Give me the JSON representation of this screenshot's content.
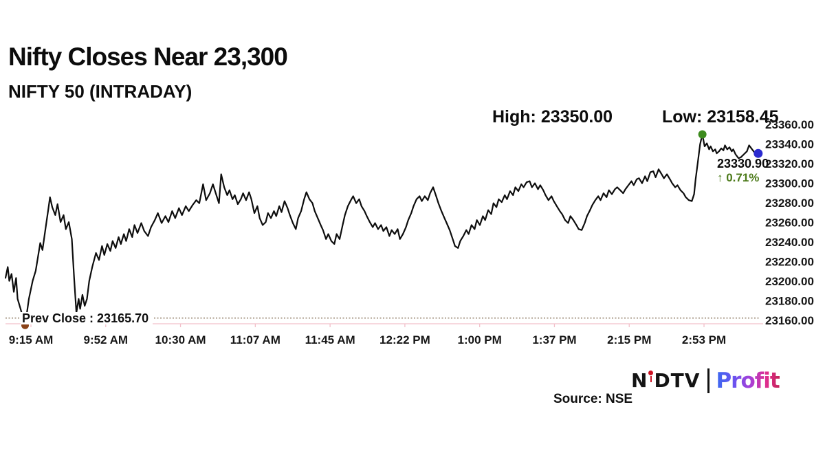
{
  "header": {
    "title": "Nifty Closes Near 23,300",
    "subtitle": "NIFTY 50 (INTRADAY)",
    "high_label": "High: 23350.00",
    "low_label": "Low: 23158.45"
  },
  "footer": {
    "source": "Source: NSE",
    "logo": {
      "n": "N",
      "dtv": "DTV",
      "profit": "Profit"
    }
  },
  "chart_data": {
    "type": "line",
    "title": "Nifty Closes Near 23,300",
    "subtitle": "NIFTY 50 (INTRADAY)",
    "instrument": "NIFTY 50",
    "high": 23350.0,
    "low": 23158.45,
    "prev_close": 23165.7,
    "last": 23330.9,
    "change_pct": 0.71,
    "prev_close_label": "Prev Close : 23165.70",
    "last_price_label": "23330.90",
    "change_label": "↑ 0.71%",
    "ylim": [
      23160,
      23360
    ],
    "grid": false,
    "line_color": "#0d0d0d",
    "axis_color": "#f2c0ca",
    "prev_close_line_color": "#86715a",
    "change_color": "#4c7a1a",
    "y_ticks": [
      "23360.00",
      "23340.00",
      "23320.00",
      "23300.00",
      "23280.00",
      "23260.00",
      "23240.00",
      "23220.00",
      "23200.00",
      "23180.00",
      "23160.00"
    ],
    "x_ticks": [
      "9:15 AM",
      "9:52 AM",
      "10:30 AM",
      "11:07 AM",
      "11:45 AM",
      "12:22 PM",
      "1:00 PM",
      "1:37 PM",
      "2:15 PM",
      "2:53 PM"
    ],
    "markers": [
      {
        "name": "low-marker",
        "x": 0.026,
        "price": 23158.45,
        "color": "#8a4218",
        "r": 5.5
      },
      {
        "name": "high-marker",
        "x": 0.924,
        "price": 23350.0,
        "color": "#3d8b1e",
        "r": 6
      },
      {
        "name": "last-marker",
        "x": 0.998,
        "price": 23330.9,
        "color": "#2b2bd0",
        "r": 6.5
      }
    ],
    "series": [
      {
        "name": "NIFTY 50",
        "points": [
          [
            0.0,
            23206
          ],
          [
            0.003,
            23217
          ],
          [
            0.005,
            23203
          ],
          [
            0.008,
            23210
          ],
          [
            0.011,
            23192
          ],
          [
            0.014,
            23206
          ],
          [
            0.016,
            23185
          ],
          [
            0.02,
            23175
          ],
          [
            0.024,
            23164
          ],
          [
            0.026,
            23158
          ],
          [
            0.031,
            23185
          ],
          [
            0.036,
            23203
          ],
          [
            0.04,
            23213
          ],
          [
            0.043,
            23227
          ],
          [
            0.046,
            23241
          ],
          [
            0.049,
            23234
          ],
          [
            0.053,
            23255
          ],
          [
            0.057,
            23276
          ],
          [
            0.059,
            23287
          ],
          [
            0.062,
            23277
          ],
          [
            0.066,
            23269
          ],
          [
            0.069,
            23280
          ],
          [
            0.073,
            23262
          ],
          [
            0.077,
            23269
          ],
          [
            0.08,
            23255
          ],
          [
            0.084,
            23262
          ],
          [
            0.088,
            23245
          ],
          [
            0.091,
            23206
          ],
          [
            0.094,
            23171
          ],
          [
            0.097,
            23185
          ],
          [
            0.099,
            23175
          ],
          [
            0.102,
            23189
          ],
          [
            0.105,
            23178
          ],
          [
            0.108,
            23185
          ],
          [
            0.111,
            23203
          ],
          [
            0.115,
            23217
          ],
          [
            0.12,
            23231
          ],
          [
            0.124,
            23224
          ],
          [
            0.128,
            23238
          ],
          [
            0.131,
            23229
          ],
          [
            0.135,
            23240
          ],
          [
            0.139,
            23233
          ],
          [
            0.142,
            23243
          ],
          [
            0.146,
            23236
          ],
          [
            0.15,
            23247
          ],
          [
            0.153,
            23240
          ],
          [
            0.157,
            23250
          ],
          [
            0.16,
            23243
          ],
          [
            0.164,
            23255
          ],
          [
            0.168,
            23247
          ],
          [
            0.171,
            23259
          ],
          [
            0.175,
            23251
          ],
          [
            0.18,
            23261
          ],
          [
            0.184,
            23253
          ],
          [
            0.189,
            23248
          ],
          [
            0.193,
            23257
          ],
          [
            0.198,
            23264
          ],
          [
            0.202,
            23271
          ],
          [
            0.207,
            23261
          ],
          [
            0.212,
            23268
          ],
          [
            0.216,
            23262
          ],
          [
            0.221,
            23273
          ],
          [
            0.225,
            23266
          ],
          [
            0.23,
            23276
          ],
          [
            0.234,
            23269
          ],
          [
            0.239,
            23278
          ],
          [
            0.243,
            23273
          ],
          [
            0.248,
            23279
          ],
          [
            0.253,
            23284
          ],
          [
            0.257,
            23281
          ],
          [
            0.262,
            23300
          ],
          [
            0.266,
            23284
          ],
          [
            0.271,
            23291
          ],
          [
            0.275,
            23300
          ],
          [
            0.28,
            23288
          ],
          [
            0.283,
            23281
          ],
          [
            0.286,
            23310
          ],
          [
            0.29,
            23297
          ],
          [
            0.294,
            23289
          ],
          [
            0.297,
            23294
          ],
          [
            0.301,
            23285
          ],
          [
            0.304,
            23289
          ],
          [
            0.308,
            23280
          ],
          [
            0.312,
            23285
          ],
          [
            0.315,
            23291
          ],
          [
            0.319,
            23284
          ],
          [
            0.323,
            23292
          ],
          [
            0.326,
            23285
          ],
          [
            0.33,
            23271
          ],
          [
            0.334,
            23278
          ],
          [
            0.337,
            23266
          ],
          [
            0.341,
            23259
          ],
          [
            0.345,
            23262
          ],
          [
            0.348,
            23271
          ],
          [
            0.352,
            23266
          ],
          [
            0.356,
            23273
          ],
          [
            0.359,
            23268
          ],
          [
            0.363,
            23278
          ],
          [
            0.366,
            23272
          ],
          [
            0.37,
            23283
          ],
          [
            0.374,
            23276
          ],
          [
            0.377,
            23269
          ],
          [
            0.381,
            23261
          ],
          [
            0.385,
            23255
          ],
          [
            0.388,
            23266
          ],
          [
            0.392,
            23273
          ],
          [
            0.396,
            23285
          ],
          [
            0.399,
            23292
          ],
          [
            0.403,
            23285
          ],
          [
            0.407,
            23281
          ],
          [
            0.41,
            23273
          ],
          [
            0.414,
            23266
          ],
          [
            0.418,
            23259
          ],
          [
            0.421,
            23254
          ],
          [
            0.425,
            23245
          ],
          [
            0.428,
            23250
          ],
          [
            0.432,
            23243
          ],
          [
            0.436,
            23240
          ],
          [
            0.439,
            23250
          ],
          [
            0.443,
            23245
          ],
          [
            0.447,
            23259
          ],
          [
            0.45,
            23269
          ],
          [
            0.454,
            23278
          ],
          [
            0.458,
            23284
          ],
          [
            0.461,
            23288
          ],
          [
            0.465,
            23281
          ],
          [
            0.469,
            23285
          ],
          [
            0.472,
            23278
          ],
          [
            0.476,
            23273
          ],
          [
            0.479,
            23268
          ],
          [
            0.483,
            23262
          ],
          [
            0.487,
            23257
          ],
          [
            0.49,
            23261
          ],
          [
            0.494,
            23255
          ],
          [
            0.498,
            23259
          ],
          [
            0.501,
            23253
          ],
          [
            0.505,
            23257
          ],
          [
            0.509,
            23248
          ],
          [
            0.512,
            23254
          ],
          [
            0.516,
            23250
          ],
          [
            0.52,
            23255
          ],
          [
            0.523,
            23245
          ],
          [
            0.527,
            23250
          ],
          [
            0.531,
            23257
          ],
          [
            0.534,
            23264
          ],
          [
            0.538,
            23271
          ],
          [
            0.541,
            23278
          ],
          [
            0.545,
            23285
          ],
          [
            0.549,
            23288
          ],
          [
            0.552,
            23283
          ],
          [
            0.556,
            23288
          ],
          [
            0.56,
            23284
          ],
          [
            0.563,
            23291
          ],
          [
            0.567,
            23297
          ],
          [
            0.571,
            23288
          ],
          [
            0.574,
            23281
          ],
          [
            0.578,
            23273
          ],
          [
            0.582,
            23266
          ],
          [
            0.585,
            23261
          ],
          [
            0.589,
            23254
          ],
          [
            0.593,
            23245
          ],
          [
            0.596,
            23238
          ],
          [
            0.6,
            23236
          ],
          [
            0.603,
            23243
          ],
          [
            0.607,
            23248
          ],
          [
            0.611,
            23254
          ],
          [
            0.614,
            23250
          ],
          [
            0.618,
            23259
          ],
          [
            0.622,
            23255
          ],
          [
            0.625,
            23264
          ],
          [
            0.629,
            23259
          ],
          [
            0.633,
            23268
          ],
          [
            0.636,
            23264
          ],
          [
            0.64,
            23274
          ],
          [
            0.644,
            23270
          ],
          [
            0.647,
            23281
          ],
          [
            0.651,
            23277
          ],
          [
            0.654,
            23285
          ],
          [
            0.658,
            23282
          ],
          [
            0.662,
            23289
          ],
          [
            0.665,
            23285
          ],
          [
            0.669,
            23293
          ],
          [
            0.673,
            23289
          ],
          [
            0.676,
            23297
          ],
          [
            0.68,
            23293
          ],
          [
            0.684,
            23300
          ],
          [
            0.687,
            23297
          ],
          [
            0.691,
            23302
          ],
          [
            0.695,
            23303
          ],
          [
            0.698,
            23297
          ],
          [
            0.702,
            23301
          ],
          [
            0.706,
            23295
          ],
          [
            0.709,
            23299
          ],
          [
            0.713,
            23294
          ],
          [
            0.716,
            23289
          ],
          [
            0.72,
            23284
          ],
          [
            0.724,
            23288
          ],
          [
            0.727,
            23283
          ],
          [
            0.731,
            23278
          ],
          [
            0.735,
            23273
          ],
          [
            0.738,
            23270
          ],
          [
            0.742,
            23264
          ],
          [
            0.746,
            23261
          ],
          [
            0.749,
            23268
          ],
          [
            0.753,
            23264
          ],
          [
            0.757,
            23259
          ],
          [
            0.76,
            23255
          ],
          [
            0.764,
            23254
          ],
          [
            0.768,
            23261
          ],
          [
            0.771,
            23268
          ],
          [
            0.775,
            23274
          ],
          [
            0.778,
            23279
          ],
          [
            0.782,
            23284
          ],
          [
            0.786,
            23288
          ],
          [
            0.789,
            23284
          ],
          [
            0.793,
            23291
          ],
          [
            0.797,
            23287
          ],
          [
            0.8,
            23294
          ],
          [
            0.804,
            23290
          ],
          [
            0.808,
            23295
          ],
          [
            0.811,
            23297
          ],
          [
            0.815,
            23294
          ],
          [
            0.819,
            23291
          ],
          [
            0.822,
            23295
          ],
          [
            0.826,
            23299
          ],
          [
            0.83,
            23303
          ],
          [
            0.833,
            23299
          ],
          [
            0.837,
            23305
          ],
          [
            0.84,
            23306
          ],
          [
            0.844,
            23301
          ],
          [
            0.848,
            23308
          ],
          [
            0.851,
            23303
          ],
          [
            0.855,
            23312
          ],
          [
            0.859,
            23313
          ],
          [
            0.862,
            23307
          ],
          [
            0.866,
            23315
          ],
          [
            0.87,
            23310
          ],
          [
            0.873,
            23306
          ],
          [
            0.877,
            23310
          ],
          [
            0.881,
            23305
          ],
          [
            0.884,
            23301
          ],
          [
            0.888,
            23297
          ],
          [
            0.891,
            23299
          ],
          [
            0.895,
            23294
          ],
          [
            0.899,
            23291
          ],
          [
            0.902,
            23287
          ],
          [
            0.906,
            23284
          ],
          [
            0.91,
            23283
          ],
          [
            0.913,
            23290
          ],
          [
            0.915,
            23305
          ],
          [
            0.918,
            23322
          ],
          [
            0.921,
            23340
          ],
          [
            0.924,
            23350
          ],
          [
            0.927,
            23338
          ],
          [
            0.93,
            23341
          ],
          [
            0.933,
            23335
          ],
          [
            0.935,
            23338
          ],
          [
            0.938,
            23333
          ],
          [
            0.941,
            23335
          ],
          [
            0.943,
            23331
          ],
          [
            0.946,
            23333
          ],
          [
            0.949,
            23336
          ],
          [
            0.952,
            23334
          ],
          [
            0.954,
            23339
          ],
          [
            0.957,
            23335
          ],
          [
            0.96,
            23337
          ],
          [
            0.963,
            23333
          ],
          [
            0.965,
            23335
          ],
          [
            0.968,
            23330
          ],
          [
            0.972,
            23326
          ],
          [
            0.975,
            23327
          ],
          [
            0.979,
            23330
          ],
          [
            0.983,
            23333
          ],
          [
            0.986,
            23339
          ],
          [
            0.99,
            23335
          ],
          [
            0.994,
            23331
          ],
          [
            0.998,
            23331
          ]
        ]
      }
    ]
  }
}
